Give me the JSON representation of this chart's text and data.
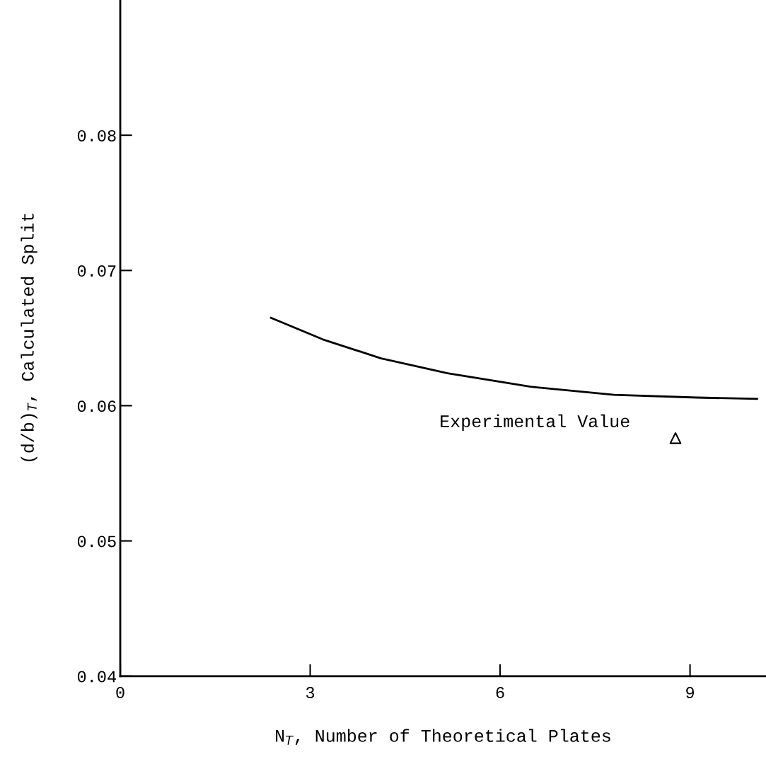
{
  "chart_data": {
    "type": "line",
    "xlabel": "N$_{T}$, Number of Theoretical Plates",
    "ylabel": "(d/b)$_{T}$, Calculated Split",
    "xlim": [
      0,
      10.2
    ],
    "ylim": [
      0.04,
      0.09
    ],
    "xticks": [
      0,
      3,
      6,
      9
    ],
    "yticks": [
      0.04,
      0.05,
      0.06,
      0.07,
      0.08
    ],
    "grid": false,
    "legend": false,
    "series": [
      {
        "color": "#000000",
        "marker": "none",
        "line_style": "solid",
        "x": [
          2.38,
          3.2,
          4.12,
          5.17,
          6.48,
          7.8,
          9.11,
          10.06
        ],
        "values": [
          0.0665,
          0.0649,
          0.0635,
          0.0624,
          0.0614,
          0.0608,
          0.0606,
          0.0605
        ]
      },
      {
        "type": "scatter",
        "color": "#000000",
        "marker": "triangle",
        "x": [
          8.77
        ],
        "values": [
          0.0576
        ]
      }
    ],
    "annotations": [
      "Experimental Value"
    ]
  }
}
